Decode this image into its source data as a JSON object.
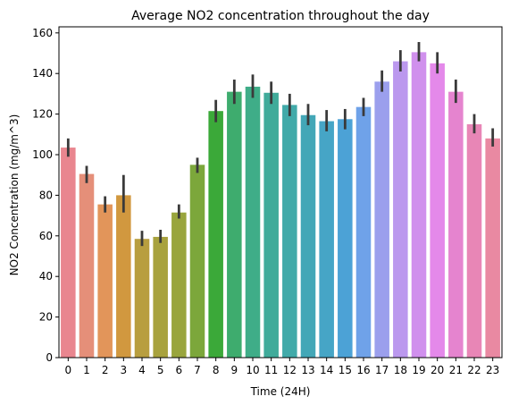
{
  "chart_data": {
    "type": "bar",
    "title": "Average NO2 concentration throughout the day",
    "xlabel": "Time (24H)",
    "ylabel": "NO2 Concentration (mg/m^3)",
    "ylim": [
      0,
      163
    ],
    "yticks": [
      0,
      20,
      40,
      60,
      80,
      100,
      120,
      140,
      160
    ],
    "grid": false,
    "categories": [
      "0",
      "1",
      "2",
      "3",
      "4",
      "5",
      "6",
      "7",
      "8",
      "9",
      "10",
      "11",
      "12",
      "13",
      "14",
      "15",
      "16",
      "17",
      "18",
      "19",
      "20",
      "21",
      "22",
      "23"
    ],
    "values": [
      103.5,
      90.5,
      75.5,
      80,
      58.5,
      59.5,
      71.5,
      95,
      121.5,
      131,
      133.5,
      130.5,
      124.5,
      119.5,
      116.5,
      117.5,
      123.5,
      136,
      146,
      150.5,
      145,
      131,
      115,
      108
    ],
    "error_low": [
      99,
      86,
      71.5,
      71.5,
      55,
      56.5,
      68.5,
      91,
      116,
      125,
      128,
      125,
      119,
      114.5,
      111.5,
      112.5,
      119,
      131,
      141,
      146,
      140,
      125.5,
      110.5,
      104
    ],
    "error_high": [
      108,
      94.5,
      79.5,
      90,
      62.5,
      63,
      75.5,
      98.5,
      127,
      137,
      139.5,
      136,
      130,
      125,
      122,
      122.5,
      128,
      141.5,
      151.5,
      155.5,
      150.5,
      137,
      120,
      113
    ],
    "colors": [
      "#e9868f",
      "#e58f79",
      "#e2955a",
      "#d1983f",
      "#b89e3f",
      "#a8a23e",
      "#99a53d",
      "#7ca73b",
      "#3ba939",
      "#3eac6e",
      "#3fad88",
      "#40ab9a",
      "#41aaa9",
      "#43a7b7",
      "#46a5c6",
      "#4ca2d6",
      "#6fa2e9",
      "#9b9fed",
      "#bb98ee",
      "#d090ed",
      "#e489ea",
      "#e584cf",
      "#e886b6",
      "#e989a2"
    ],
    "error_color": "#3a3a3a"
  }
}
